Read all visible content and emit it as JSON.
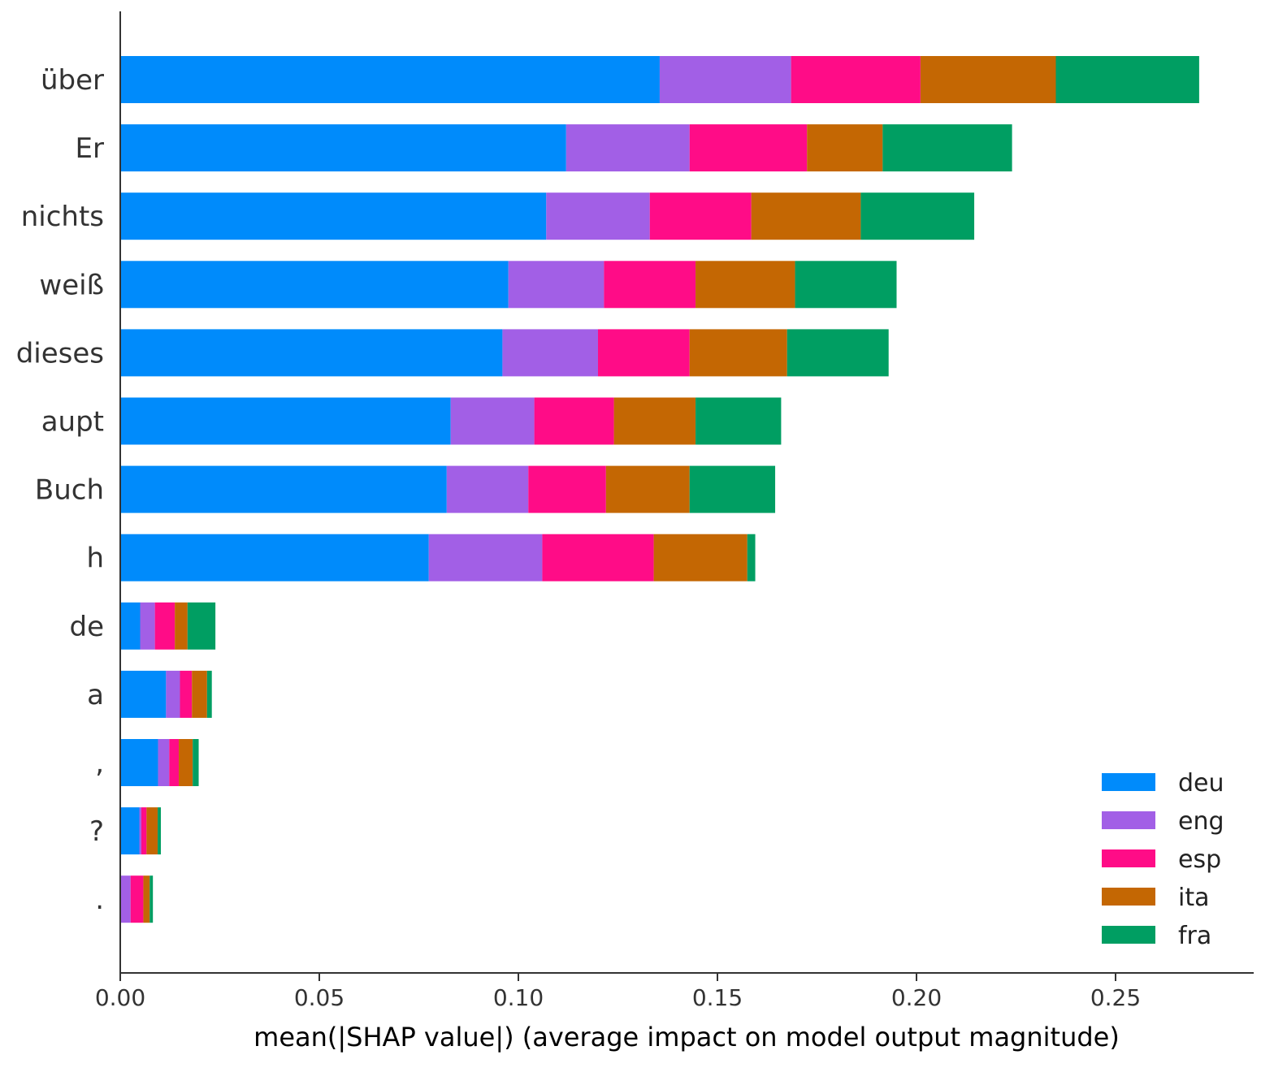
{
  "chart_data": {
    "type": "bar",
    "orientation": "horizontal",
    "stacked": true,
    "title": "",
    "xlabel": "mean(|SHAP value|) (average impact on model output magnitude)",
    "ylabel": "",
    "xlim": [
      0,
      0.285
    ],
    "xticks": [
      0.0,
      0.05,
      0.1,
      0.15,
      0.2,
      0.25
    ],
    "xtick_labels": [
      "0.00",
      "0.05",
      "0.10",
      "0.15",
      "0.20",
      "0.25"
    ],
    "grid": false,
    "legend_position": "bottom-right",
    "categories": [
      "über",
      "Er",
      "nichts",
      "weiß",
      "dieses",
      "aupt",
      "Buch",
      "h",
      "de",
      "a",
      ",",
      "?",
      "."
    ],
    "series": [
      {
        "name": "deu",
        "color": "#008bfb",
        "values": [
          0.1355,
          0.112,
          0.107,
          0.0975,
          0.096,
          0.083,
          0.082,
          0.0775,
          0.005,
          0.0115,
          0.0095,
          0.0048,
          0.0
        ]
      },
      {
        "name": "eng",
        "color": "#a25fe6",
        "values": [
          0.033,
          0.031,
          0.026,
          0.024,
          0.024,
          0.021,
          0.0205,
          0.0285,
          0.0037,
          0.0035,
          0.0028,
          0.0005,
          0.0026
        ]
      },
      {
        "name": "esp",
        "color": "#ff0c87",
        "values": [
          0.0325,
          0.0295,
          0.0255,
          0.023,
          0.023,
          0.02,
          0.0195,
          0.028,
          0.005,
          0.003,
          0.0024,
          0.0013,
          0.0032
        ]
      },
      {
        "name": "ita",
        "color": "#c46703",
        "values": [
          0.034,
          0.019,
          0.0275,
          0.025,
          0.0245,
          0.0205,
          0.021,
          0.0235,
          0.0032,
          0.0038,
          0.0035,
          0.0028,
          0.0016
        ]
      },
      {
        "name": "fra",
        "color": "#009e62",
        "values": [
          0.036,
          0.0325,
          0.0285,
          0.0255,
          0.0255,
          0.0215,
          0.0215,
          0.002,
          0.007,
          0.0012,
          0.0015,
          0.0008,
          0.0008
        ]
      }
    ]
  }
}
